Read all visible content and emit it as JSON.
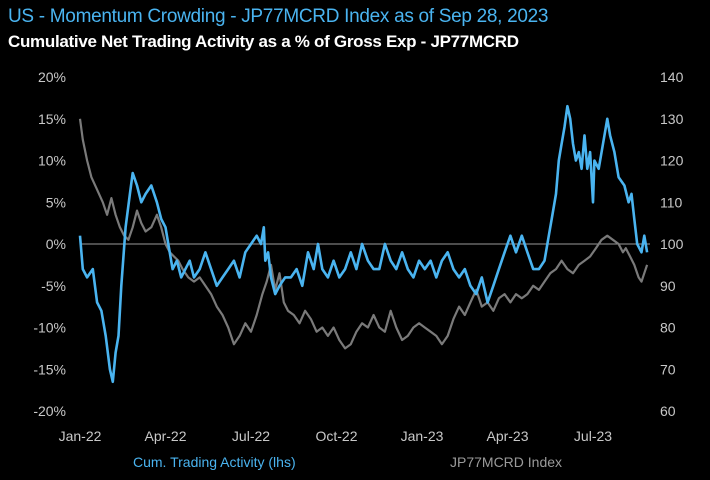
{
  "chart_data": {
    "type": "line",
    "title": "US - Momentum Crowding - JP77MCRD Index as of Sep 28, 2023",
    "subtitle": "Cumulative Net Trading Activity as a % of Gross Exp - JP77MCRD",
    "x_start": "2022-01-03",
    "x_end": "2023-09-28",
    "x_tick_labels": [
      "Jan-22",
      "Apr-22",
      "Jul-22",
      "Oct-22",
      "Jan-23",
      "Apr-23",
      "Jul-23"
    ],
    "x_tick_positions_month": [
      0,
      3,
      6,
      9,
      12,
      15,
      18
    ],
    "y_left": {
      "min": -20,
      "max": 20,
      "ticks": [
        -20,
        -15,
        -10,
        -5,
        0,
        5,
        10,
        15,
        20
      ],
      "tick_labels": [
        "-20%",
        "-15%",
        "-10%",
        "-5%",
        "0%",
        "5%",
        "10%",
        "15%",
        "20%"
      ]
    },
    "y_right": {
      "min": 60,
      "max": 140,
      "ticks": [
        60,
        70,
        80,
        90,
        100,
        110,
        120,
        130,
        140
      ],
      "tick_labels": [
        "60",
        "70",
        "80",
        "90",
        "100",
        "110",
        "120",
        "130",
        "140"
      ]
    },
    "zero_line": true,
    "series": [
      {
        "name": "Cum. Trading Activity (lhs)",
        "axis": "left",
        "color": "#4ab4f0",
        "points": [
          [
            0.0,
            1
          ],
          [
            0.1,
            -3
          ],
          [
            0.25,
            -4
          ],
          [
            0.45,
            -3
          ],
          [
            0.6,
            -7
          ],
          [
            0.75,
            -8
          ],
          [
            0.9,
            -11
          ],
          [
            1.05,
            -15
          ],
          [
            1.15,
            -16.5
          ],
          [
            1.25,
            -13
          ],
          [
            1.35,
            -11
          ],
          [
            1.45,
            -5
          ],
          [
            1.6,
            2
          ],
          [
            1.75,
            6
          ],
          [
            1.85,
            8.5
          ],
          [
            2.0,
            7
          ],
          [
            2.15,
            5
          ],
          [
            2.3,
            6
          ],
          [
            2.5,
            7
          ],
          [
            2.7,
            5
          ],
          [
            2.85,
            3
          ],
          [
            3.0,
            2
          ],
          [
            3.1,
            0
          ],
          [
            3.25,
            -3
          ],
          [
            3.4,
            -2
          ],
          [
            3.55,
            -4
          ],
          [
            3.7,
            -3
          ],
          [
            3.85,
            -2
          ],
          [
            4.0,
            -4
          ],
          [
            4.2,
            -3
          ],
          [
            4.4,
            -1
          ],
          [
            4.6,
            -3
          ],
          [
            4.8,
            -5
          ],
          [
            5.0,
            -4
          ],
          [
            5.2,
            -3
          ],
          [
            5.4,
            -2
          ],
          [
            5.6,
            -4
          ],
          [
            5.8,
            -1
          ],
          [
            6.0,
            0
          ],
          [
            6.2,
            1
          ],
          [
            6.35,
            0
          ],
          [
            6.45,
            2
          ],
          [
            6.5,
            -2
          ],
          [
            6.6,
            -1
          ],
          [
            6.7,
            -4
          ],
          [
            6.85,
            -6
          ],
          [
            7.0,
            -5
          ],
          [
            7.2,
            -4
          ],
          [
            7.4,
            -4
          ],
          [
            7.6,
            -3
          ],
          [
            7.8,
            -5
          ],
          [
            8.0,
            -1
          ],
          [
            8.1,
            -2
          ],
          [
            8.2,
            -3
          ],
          [
            8.35,
            0
          ],
          [
            8.5,
            -3
          ],
          [
            8.7,
            -4
          ],
          [
            8.9,
            -2
          ],
          [
            9.1,
            -4
          ],
          [
            9.3,
            -3
          ],
          [
            9.5,
            -1
          ],
          [
            9.7,
            -3
          ],
          [
            9.9,
            0
          ],
          [
            10.1,
            -2
          ],
          [
            10.3,
            -3
          ],
          [
            10.5,
            -3
          ],
          [
            10.7,
            0
          ],
          [
            10.9,
            -2
          ],
          [
            11.1,
            -3
          ],
          [
            11.3,
            -1
          ],
          [
            11.5,
            -3
          ],
          [
            11.7,
            -4
          ],
          [
            11.9,
            -2
          ],
          [
            12.1,
            -3
          ],
          [
            12.3,
            -2
          ],
          [
            12.5,
            -4
          ],
          [
            12.7,
            -2
          ],
          [
            12.9,
            -1
          ],
          [
            13.1,
            -3
          ],
          [
            13.3,
            -4
          ],
          [
            13.5,
            -3
          ],
          [
            13.7,
            -5
          ],
          [
            13.9,
            -6
          ],
          [
            14.1,
            -4
          ],
          [
            14.3,
            -7
          ],
          [
            14.5,
            -5
          ],
          [
            14.7,
            -3
          ],
          [
            14.9,
            -1
          ],
          [
            15.1,
            1
          ],
          [
            15.3,
            -1
          ],
          [
            15.5,
            1
          ],
          [
            15.7,
            -1
          ],
          [
            15.9,
            -3
          ],
          [
            16.1,
            -3
          ],
          [
            16.3,
            -2
          ],
          [
            16.45,
            1
          ],
          [
            16.55,
            3
          ],
          [
            16.7,
            6
          ],
          [
            16.8,
            10
          ],
          [
            16.9,
            12
          ],
          [
            17.0,
            14
          ],
          [
            17.1,
            16.5
          ],
          [
            17.2,
            15
          ],
          [
            17.3,
            12
          ],
          [
            17.4,
            10
          ],
          [
            17.5,
            11
          ],
          [
            17.6,
            9
          ],
          [
            17.7,
            13
          ],
          [
            17.8,
            9
          ],
          [
            17.9,
            11
          ],
          [
            18.0,
            5
          ],
          [
            18.05,
            10
          ],
          [
            18.2,
            9
          ],
          [
            18.35,
            12
          ],
          [
            18.5,
            15
          ],
          [
            18.6,
            13
          ],
          [
            18.75,
            11
          ],
          [
            18.9,
            8
          ],
          [
            19.1,
            7
          ],
          [
            19.25,
            5
          ],
          [
            19.35,
            6
          ],
          [
            19.45,
            3
          ],
          [
            19.55,
            0
          ],
          [
            19.7,
            -1
          ],
          [
            19.8,
            1
          ],
          [
            19.9,
            -1
          ]
        ]
      },
      {
        "name": "JP77MCRD Index",
        "axis": "right",
        "color": "#7a7a7a",
        "points": [
          [
            0.0,
            130
          ],
          [
            0.1,
            125
          ],
          [
            0.25,
            120
          ],
          [
            0.4,
            116
          ],
          [
            0.6,
            113
          ],
          [
            0.8,
            110
          ],
          [
            0.95,
            107
          ],
          [
            1.1,
            111
          ],
          [
            1.25,
            107
          ],
          [
            1.4,
            104
          ],
          [
            1.55,
            102
          ],
          [
            1.7,
            101
          ],
          [
            1.85,
            104
          ],
          [
            2.0,
            108
          ],
          [
            2.15,
            105
          ],
          [
            2.3,
            103
          ],
          [
            2.5,
            104
          ],
          [
            2.7,
            107
          ],
          [
            2.85,
            104
          ],
          [
            3.0,
            100
          ],
          [
            3.15,
            98
          ],
          [
            3.3,
            97
          ],
          [
            3.45,
            96
          ],
          [
            3.6,
            94
          ],
          [
            3.8,
            92
          ],
          [
            4.0,
            91
          ],
          [
            4.2,
            92
          ],
          [
            4.4,
            90
          ],
          [
            4.6,
            88
          ],
          [
            4.8,
            85
          ],
          [
            5.0,
            83
          ],
          [
            5.2,
            80
          ],
          [
            5.4,
            76
          ],
          [
            5.6,
            78
          ],
          [
            5.8,
            81
          ],
          [
            6.0,
            79
          ],
          [
            6.2,
            83
          ],
          [
            6.4,
            88
          ],
          [
            6.55,
            91
          ],
          [
            6.7,
            95
          ],
          [
            6.85,
            89
          ],
          [
            7.0,
            93
          ],
          [
            7.15,
            86
          ],
          [
            7.3,
            84
          ],
          [
            7.5,
            83
          ],
          [
            7.7,
            81
          ],
          [
            7.9,
            84
          ],
          [
            8.1,
            82
          ],
          [
            8.3,
            79
          ],
          [
            8.5,
            80
          ],
          [
            8.7,
            78
          ],
          [
            8.9,
            80
          ],
          [
            9.1,
            77
          ],
          [
            9.3,
            75
          ],
          [
            9.5,
            76
          ],
          [
            9.7,
            79
          ],
          [
            9.9,
            81
          ],
          [
            10.1,
            80
          ],
          [
            10.3,
            83
          ],
          [
            10.5,
            80
          ],
          [
            10.7,
            79
          ],
          [
            10.9,
            84
          ],
          [
            11.1,
            80
          ],
          [
            11.3,
            77
          ],
          [
            11.5,
            78
          ],
          [
            11.7,
            80
          ],
          [
            11.9,
            81
          ],
          [
            12.1,
            80
          ],
          [
            12.3,
            79
          ],
          [
            12.5,
            78
          ],
          [
            12.7,
            76
          ],
          [
            12.9,
            78
          ],
          [
            13.1,
            82
          ],
          [
            13.3,
            85
          ],
          [
            13.5,
            83
          ],
          [
            13.7,
            86
          ],
          [
            13.9,
            89
          ],
          [
            14.1,
            85
          ],
          [
            14.3,
            86
          ],
          [
            14.5,
            84
          ],
          [
            14.7,
            87
          ],
          [
            14.9,
            88
          ],
          [
            15.1,
            86
          ],
          [
            15.3,
            88
          ],
          [
            15.5,
            87
          ],
          [
            15.7,
            88
          ],
          [
            15.9,
            90
          ],
          [
            16.1,
            89
          ],
          [
            16.3,
            91
          ],
          [
            16.5,
            93
          ],
          [
            16.7,
            94
          ],
          [
            16.9,
            96
          ],
          [
            17.1,
            94
          ],
          [
            17.3,
            93
          ],
          [
            17.5,
            95
          ],
          [
            17.7,
            96
          ],
          [
            17.9,
            97
          ],
          [
            18.1,
            99
          ],
          [
            18.3,
            101
          ],
          [
            18.5,
            102
          ],
          [
            18.7,
            101
          ],
          [
            18.9,
            100
          ],
          [
            19.05,
            98
          ],
          [
            19.15,
            99
          ],
          [
            19.3,
            97
          ],
          [
            19.45,
            95
          ],
          [
            19.6,
            92
          ],
          [
            19.7,
            91
          ],
          [
            19.8,
            93
          ],
          [
            19.9,
            95
          ]
        ]
      }
    ]
  }
}
